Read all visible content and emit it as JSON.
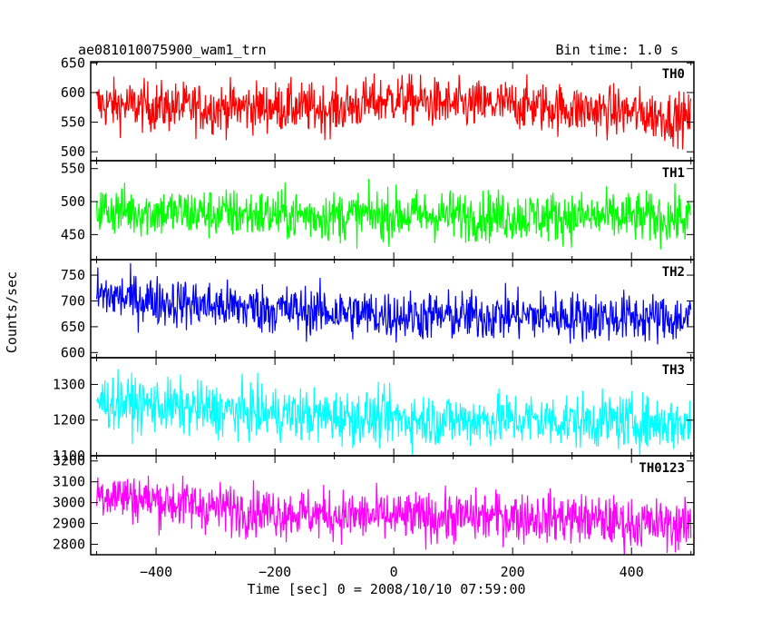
{
  "header": {
    "title": "ae081010075900_wam1_trn",
    "bin_time": "Bin time: 1.0 s"
  },
  "axes": {
    "xlabel": "Time [sec] 0 = 2008/10/10 07:59:00",
    "ylabel": "Counts/sec"
  },
  "chart_data": {
    "type": "line",
    "title": "ae081010075900_wam1_trn",
    "xlabel": "Time [sec] 0 = 2008/10/10 07:59:00",
    "ylabel": "Counts/sec",
    "xlim": [
      -510,
      505
    ],
    "x_ticks": [
      -400,
      -200,
      0,
      200,
      400
    ],
    "x_range_data": [
      -500,
      500
    ],
    "bin_time_s": 1.0,
    "grid": false,
    "panels": [
      {
        "name": "TH0",
        "color": "#ff0000",
        "ylim": [
          485,
          652
        ],
        "y_ticks": [
          500,
          550,
          600,
          650
        ],
        "mean_trend": [
          [
            -500,
            580
          ],
          [
            -400,
            576
          ],
          [
            -300,
            574
          ],
          [
            -200,
            576
          ],
          [
            -100,
            572
          ],
          [
            0,
            590
          ],
          [
            100,
            578
          ],
          [
            200,
            580
          ],
          [
            300,
            572
          ],
          [
            400,
            566
          ],
          [
            500,
            555
          ]
        ],
        "noise_halfwidth": 42
      },
      {
        "name": "TH1",
        "color": "#00ff00",
        "ylim": [
          412,
          562
        ],
        "y_ticks": [
          450,
          500,
          550
        ],
        "mean_trend": [
          [
            -500,
            488
          ],
          [
            -400,
            484
          ],
          [
            -300,
            482
          ],
          [
            -200,
            480
          ],
          [
            -100,
            478
          ],
          [
            0,
            480
          ],
          [
            100,
            479
          ],
          [
            200,
            478
          ],
          [
            300,
            477
          ],
          [
            400,
            476
          ],
          [
            500,
            474
          ]
        ],
        "noise_halfwidth": 38
      },
      {
        "name": "TH2",
        "color": "#0000ff",
        "ylim": [
          590,
          780
        ],
        "y_ticks": [
          600,
          650,
          700,
          750
        ],
        "mean_trend": [
          [
            -500,
            712
          ],
          [
            -400,
            700
          ],
          [
            -300,
            690
          ],
          [
            -200,
            684
          ],
          [
            -100,
            678
          ],
          [
            0,
            672
          ],
          [
            100,
            670
          ],
          [
            200,
            672
          ],
          [
            300,
            670
          ],
          [
            400,
            668
          ],
          [
            500,
            665
          ]
        ],
        "noise_halfwidth": 48
      },
      {
        "name": "TH3",
        "color": "#00ffff",
        "ylim": [
          1100,
          1375
        ],
        "y_ticks": [
          1100,
          1200,
          1300
        ],
        "mean_trend": [
          [
            -500,
            1255
          ],
          [
            -400,
            1240
          ],
          [
            -300,
            1228
          ],
          [
            -200,
            1218
          ],
          [
            -100,
            1210
          ],
          [
            0,
            1205
          ],
          [
            100,
            1200
          ],
          [
            200,
            1202
          ],
          [
            300,
            1198
          ],
          [
            400,
            1195
          ],
          [
            500,
            1190
          ]
        ],
        "noise_halfwidth": 75
      },
      {
        "name": "TH0123",
        "color": "#ff00ff",
        "ylim": [
          2750,
          3225
        ],
        "y_ticks": [
          2800,
          2900,
          3000,
          3100,
          3200
        ],
        "mean_trend": [
          [
            -500,
            3050
          ],
          [
            -400,
            3010
          ],
          [
            -300,
            2975
          ],
          [
            -200,
            2955
          ],
          [
            -100,
            2940
          ],
          [
            0,
            2930
          ],
          [
            100,
            2930
          ],
          [
            200,
            2935
          ],
          [
            300,
            2925
          ],
          [
            400,
            2900
          ],
          [
            500,
            2890
          ]
        ],
        "noise_halfwidth": 120
      }
    ]
  }
}
